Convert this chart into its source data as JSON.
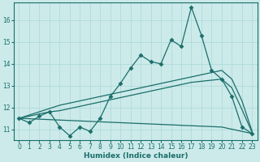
{
  "xlabel": "Humidex (Indice chaleur)",
  "background_color": "#cceaea",
  "line_color": "#1a6e6a",
  "xlim": [
    -0.5,
    23.5
  ],
  "ylim": [
    10.5,
    16.8
  ],
  "x": [
    0,
    1,
    2,
    3,
    4,
    5,
    6,
    7,
    8,
    9,
    10,
    11,
    12,
    13,
    14,
    15,
    16,
    17,
    18,
    19,
    20,
    21,
    22,
    23
  ],
  "y_main": [
    11.5,
    11.3,
    11.6,
    11.8,
    11.1,
    10.7,
    11.1,
    10.9,
    11.5,
    12.5,
    13.1,
    13.8,
    14.4,
    14.1,
    14.0,
    15.1,
    14.8,
    16.6,
    15.3,
    13.7,
    13.3,
    12.5,
    11.1,
    10.8
  ],
  "y_trend_high": [
    11.5,
    11.65,
    11.8,
    11.95,
    12.1,
    12.2,
    12.3,
    12.4,
    12.5,
    12.6,
    12.7,
    12.8,
    12.9,
    13.0,
    13.1,
    13.2,
    13.3,
    13.4,
    13.5,
    13.6,
    13.7,
    13.3,
    12.3,
    10.9
  ],
  "y_trend_mid": [
    11.5,
    11.6,
    11.7,
    11.8,
    11.85,
    11.95,
    12.05,
    12.15,
    12.25,
    12.35,
    12.45,
    12.55,
    12.65,
    12.75,
    12.85,
    12.95,
    13.05,
    13.15,
    13.2,
    13.25,
    13.3,
    12.9,
    11.9,
    10.85
  ],
  "y_trend_low": [
    11.5,
    11.48,
    11.46,
    11.44,
    11.42,
    11.4,
    11.38,
    11.36,
    11.34,
    11.32,
    11.3,
    11.28,
    11.26,
    11.24,
    11.22,
    11.2,
    11.18,
    11.16,
    11.14,
    11.12,
    11.1,
    11.0,
    10.9,
    10.8
  ],
  "xticks": [
    0,
    1,
    2,
    3,
    4,
    5,
    6,
    7,
    8,
    9,
    10,
    11,
    12,
    13,
    14,
    15,
    16,
    17,
    18,
    19,
    20,
    21,
    22,
    23
  ],
  "yticks": [
    11,
    12,
    13,
    14,
    15,
    16
  ],
  "grid_color": "#aad8d8",
  "tick_fontsize": 5.5,
  "xlabel_fontsize": 6.5
}
